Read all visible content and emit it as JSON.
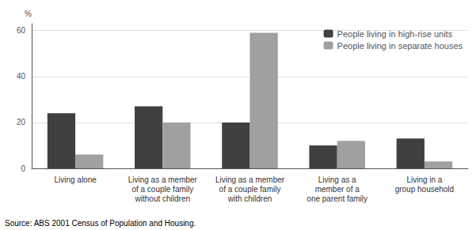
{
  "chart_data": {
    "type": "bar",
    "categories": [
      "Living alone",
      "Living as a member\nof a couple family\nwithout children",
      "Living as a member\nof a couple family\nwith children",
      "Living as a\nmember of a\none parent family",
      "Living in a\ngroup household"
    ],
    "series": [
      {
        "name": "People living in high-rise units",
        "color": "#404040",
        "values": [
          24,
          27,
          20,
          10,
          13
        ]
      },
      {
        "name": "People living in separate houses",
        "color": "#a0a0a0",
        "values": [
          6,
          20,
          59,
          12,
          3
        ]
      }
    ],
    "ylabel": "%",
    "ylim": [
      0,
      63
    ],
    "yticks": [
      0,
      20,
      40,
      60
    ],
    "grid": true,
    "legend": "upper right",
    "annotations": [
      "Source: ABS 2001 Census of Population and Housing."
    ]
  }
}
